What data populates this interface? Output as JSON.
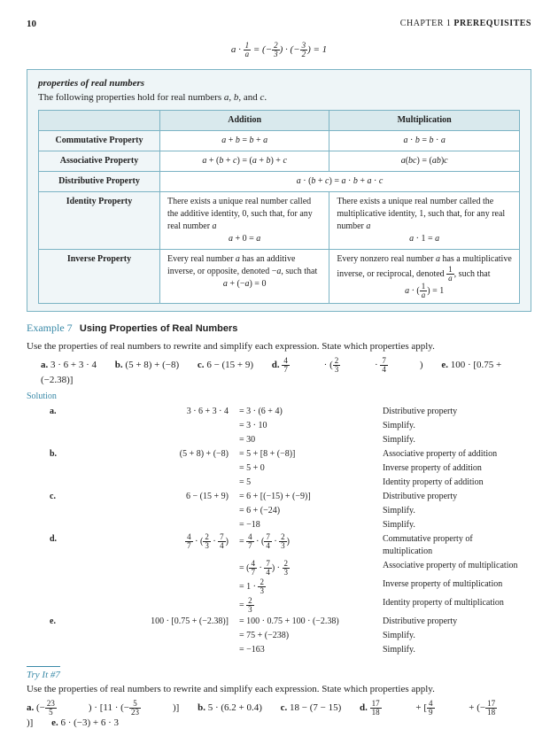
{
  "page_num": "10",
  "chapter": "CHAPTER 1",
  "chapter_title": "PREREQUISITES",
  "top_eq": "a · (1/a) = (−2/3) · (−3/2) = 1",
  "box": {
    "title": "properties of real numbers",
    "intro": "The following properties hold for real numbers a, b, and c.",
    "head_add": "Addition",
    "head_mult": "Multiplication",
    "rows": [
      {
        "name": "Commutative Property",
        "add": "a + b = b + a",
        "mult": "a · b = b · a"
      },
      {
        "name": "Associative Property",
        "add": "a + (b + c) = (a + b) + c",
        "mult": "a(bc) = (ab)c"
      },
      {
        "name": "Distributive Property",
        "span": "a · (b + c) = a · b + a · c"
      },
      {
        "name": "Identity Property",
        "add": "There exists a unique real number called the additive identity, 0, such that, for any real number a\na + 0 = a",
        "mult": "There exists a unique real number called the multiplicative identity, 1, such that, for any real number a\na · 1 = a"
      },
      {
        "name": "Inverse Property",
        "add": "Every real number a has an additive inverse, or opposite, denoted −a, such that\na + (−a) = 0",
        "mult": "Every nonzero real number a has a multiplicative inverse, or reciprocal, denoted 1/a, such that\na · (1/a) = 1"
      }
    ]
  },
  "example": {
    "num": "Example 7",
    "title": "Using Properties of Real Numbers",
    "instr": "Use the properties of real numbers to rewrite and simplify each expression. State which properties apply.",
    "parts": [
      "a.  3 · 6 + 3 · 4",
      "b.  (5 + 8) + (−8)",
      "c.  6 − (15 + 9)",
      "d.  4/7 · (2/3 · 7/4)",
      "e.  100 · [0.75 + (−2.38)]"
    ]
  },
  "sol_label": "Solution",
  "work": [
    {
      "lbl": "a.",
      "rows": [
        [
          "3 · 6 + 3 · 4",
          "= 3 · (6 + 4)",
          "Distributive property"
        ],
        [
          "",
          "= 3 · 10",
          "Simplify."
        ],
        [
          "",
          "= 30",
          "Simplify."
        ]
      ]
    },
    {
      "lbl": "b.",
      "rows": [
        [
          "(5 + 8) + (−8)",
          "= 5 + [8 + (−8)]",
          "Associative property of addition"
        ],
        [
          "",
          "= 5 + 0",
          "Inverse property of addition"
        ],
        [
          "",
          "= 5",
          "Identity property of addition"
        ]
      ]
    },
    {
      "lbl": "c.",
      "rows": [
        [
          "6 − (15 + 9)",
          "= 6 + [(−15) + (−9)]",
          "Distributive property"
        ],
        [
          "",
          "= 6 + (−24)",
          "Simplify."
        ],
        [
          "",
          "= −18",
          "Simplify."
        ]
      ]
    },
    {
      "lbl": "d.",
      "rows": [
        [
          "4/7 · (2/3 · 7/4)",
          "= 4/7 · (7/4 · 2/3)",
          "Commutative property of multiplication"
        ],
        [
          "",
          "= (4/7 · 7/4) · 2/3",
          "Associative property of multiplication"
        ],
        [
          "",
          "= 1 · 2/3",
          "Inverse property of multiplication"
        ],
        [
          "",
          "= 2/3",
          "Identity property of multiplication"
        ]
      ]
    },
    {
      "lbl": "e.",
      "rows": [
        [
          "100 · [0.75 + (−2.38)]",
          "= 100 · 0.75 + 100 · (−2.38)",
          "Distributive property"
        ],
        [
          "",
          "= 75 + (−238)",
          "Simplify."
        ],
        [
          "",
          "= −163",
          "Simplify."
        ]
      ]
    }
  ],
  "tryit": {
    "label": "Try It #7",
    "instr": "Use the properties of real numbers to rewrite and simplify each expression. State which properties apply.",
    "parts": [
      "a.  (−23/5) · [11 · (−5/23)]",
      "b.  5 · (6.2 + 0.4)",
      "c.  18 − (7 − 15)",
      "d.  17/18 + [4/9 + (−17/18)]",
      "e.  6 · (−3) + 6 · 3"
    ]
  }
}
